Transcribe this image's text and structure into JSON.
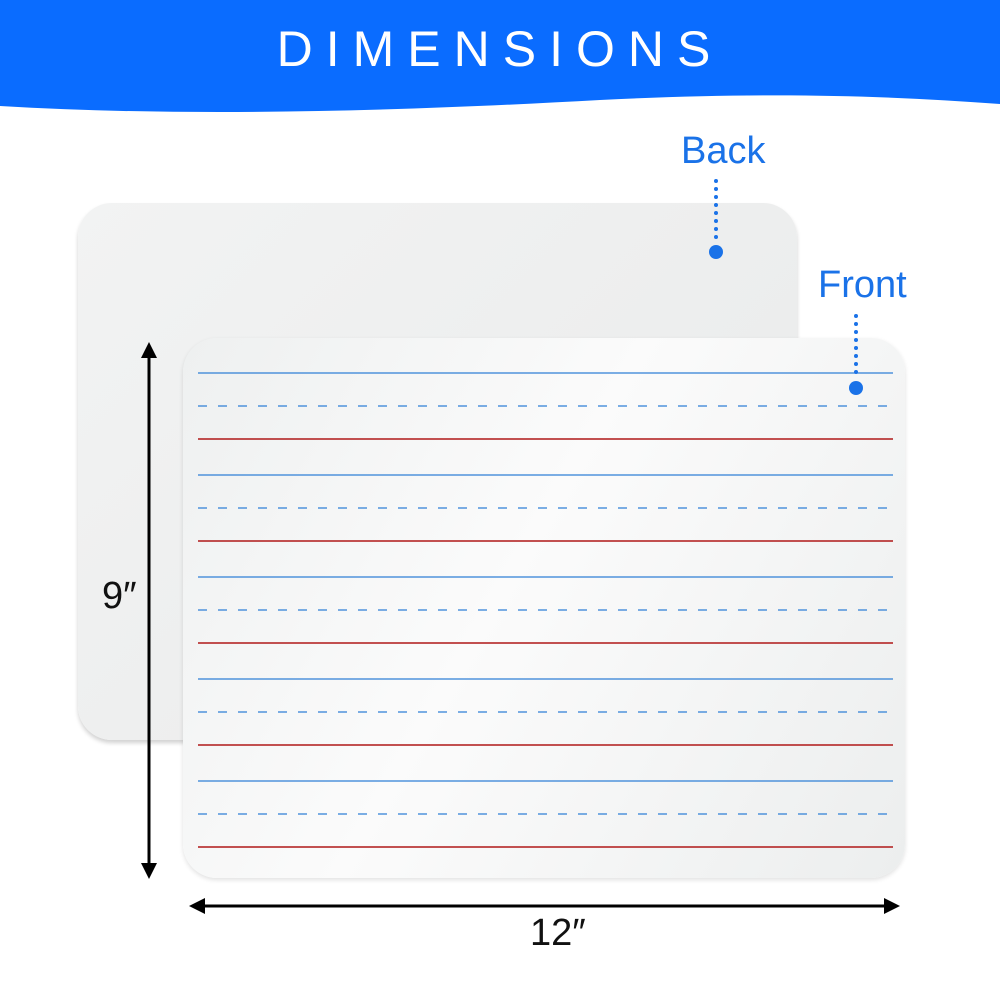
{
  "header": {
    "title": "DIMENSIONS",
    "color": "#0a6cff"
  },
  "labels": {
    "back": "Back",
    "front": "Front",
    "label_color": "#1a72e8"
  },
  "dimensions": {
    "height": "9″",
    "width": "12″"
  },
  "ruling": {
    "blue": "#2f7fd6",
    "red": "#b01818",
    "rows": 5
  }
}
